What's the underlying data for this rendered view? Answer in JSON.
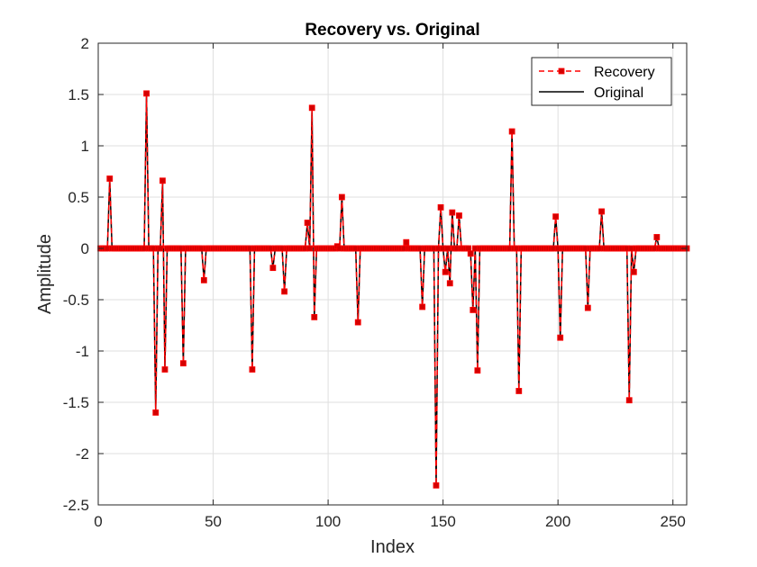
{
  "chart_data": {
    "type": "line",
    "title": "Recovery vs. Original",
    "xlabel": "Index",
    "ylabel": "Amplitude",
    "xlim": [
      0,
      256
    ],
    "ylim": [
      -2.5,
      2
    ],
    "xticks": [
      0,
      50,
      100,
      150,
      200,
      250
    ],
    "yticks": [
      -2.5,
      -2,
      -1.5,
      -1,
      -0.5,
      0,
      0.5,
      1,
      1.5,
      2
    ],
    "ytick_labels": [
      "-2.5",
      "-2",
      "-1.5",
      "-1",
      "-0.5",
      "0",
      "0.5",
      "1",
      "1.5",
      "2"
    ],
    "grid": true,
    "legend_position": "top-right",
    "n_points": 256,
    "series": [
      {
        "name": "Recovery",
        "style": "dashed",
        "marker": "square",
        "color": "#ff0000"
      },
      {
        "name": "Original",
        "style": "solid",
        "marker": "none",
        "color": "#000000"
      }
    ],
    "nonzero": [
      {
        "index": 5,
        "value": 0.68
      },
      {
        "index": 21,
        "value": 1.51
      },
      {
        "index": 25,
        "value": -1.6
      },
      {
        "index": 28,
        "value": 0.66
      },
      {
        "index": 29,
        "value": -1.18
      },
      {
        "index": 37,
        "value": -1.12
      },
      {
        "index": 46,
        "value": -0.31
      },
      {
        "index": 67,
        "value": -1.18
      },
      {
        "index": 76,
        "value": -0.19
      },
      {
        "index": 81,
        "value": -0.42
      },
      {
        "index": 91,
        "value": 0.25
      },
      {
        "index": 93,
        "value": 1.37
      },
      {
        "index": 94,
        "value": -0.67
      },
      {
        "index": 104,
        "value": 0.02
      },
      {
        "index": 106,
        "value": 0.5
      },
      {
        "index": 113,
        "value": -0.72
      },
      {
        "index": 134,
        "value": 0.06
      },
      {
        "index": 141,
        "value": -0.57
      },
      {
        "index": 147,
        "value": -2.31
      },
      {
        "index": 149,
        "value": 0.4
      },
      {
        "index": 151,
        "value": -0.23
      },
      {
        "index": 153,
        "value": -0.34
      },
      {
        "index": 154,
        "value": 0.35
      },
      {
        "index": 157,
        "value": 0.32
      },
      {
        "index": 162,
        "value": -0.05
      },
      {
        "index": 163,
        "value": -0.6
      },
      {
        "index": 165,
        "value": -1.19
      },
      {
        "index": 180,
        "value": 1.14
      },
      {
        "index": 183,
        "value": -1.39
      },
      {
        "index": 199,
        "value": 0.31
      },
      {
        "index": 201,
        "value": -0.87
      },
      {
        "index": 213,
        "value": -0.58
      },
      {
        "index": 219,
        "value": 0.36
      },
      {
        "index": 231,
        "value": -1.48
      },
      {
        "index": 233,
        "value": -0.23
      },
      {
        "index": 243,
        "value": 0.11
      }
    ]
  }
}
